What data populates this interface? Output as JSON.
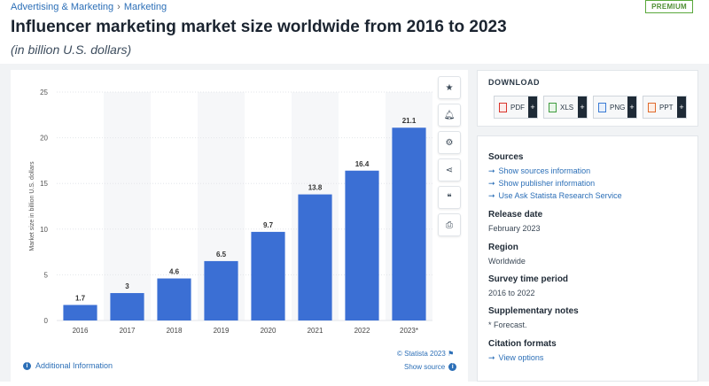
{
  "breadcrumb": {
    "item1": "Advertising & Marketing",
    "sep": "›",
    "item2": "Marketing"
  },
  "badge": "PREMIUM",
  "header": {
    "title": "Influencer marketing market size worldwide from 2016 to 2023",
    "subtitle": "(in billion U.S. dollars)"
  },
  "chart_data": {
    "type": "bar",
    "categories": [
      "2016",
      "2017",
      "2018",
      "2019",
      "2020",
      "2021",
      "2022",
      "2023*"
    ],
    "values": [
      1.7,
      3,
      4.6,
      6.5,
      9.7,
      13.8,
      16.4,
      21.1
    ],
    "value_labels": [
      "1.7",
      "3",
      "4.6",
      "6.5",
      "9.7",
      "13.8",
      "16.4",
      "21.1"
    ],
    "title": "",
    "xlabel": "",
    "ylabel": "Market size in billion U.S. dollars",
    "ylim": [
      0,
      25
    ],
    "yticks": [
      0,
      5,
      10,
      15,
      20,
      25
    ],
    "grid": true,
    "bar_color": "#3b6fd4"
  },
  "chart_footer": {
    "additional_info": "Additional Information",
    "copyright": "© Statista 2023",
    "show_source": "Show source"
  },
  "tools": [
    "star-icon",
    "bell-icon",
    "gear-icon",
    "share-icon",
    "quote-icon",
    "print-icon"
  ],
  "download": {
    "title": "DOWNLOAD",
    "buttons": [
      {
        "label": "PDF",
        "color": "#d9342b"
      },
      {
        "label": "XLS",
        "color": "#3f9d3f"
      },
      {
        "label": "PNG",
        "color": "#3a7bd5"
      },
      {
        "label": "PPT",
        "color": "#e06a2c"
      }
    ],
    "plus": "+"
  },
  "meta": {
    "sources_title": "Sources",
    "sources_links": [
      "Show sources information",
      "Show publisher information",
      "Use Ask Statista Research Service"
    ],
    "release_title": "Release date",
    "release_value": "February 2023",
    "region_title": "Region",
    "region_value": "Worldwide",
    "survey_title": "Survey time period",
    "survey_value": "2016 to 2022",
    "notes_title": "Supplementary notes",
    "notes_value": "* Forecast.",
    "citation_title": "Citation formats",
    "citation_link": "View options"
  }
}
